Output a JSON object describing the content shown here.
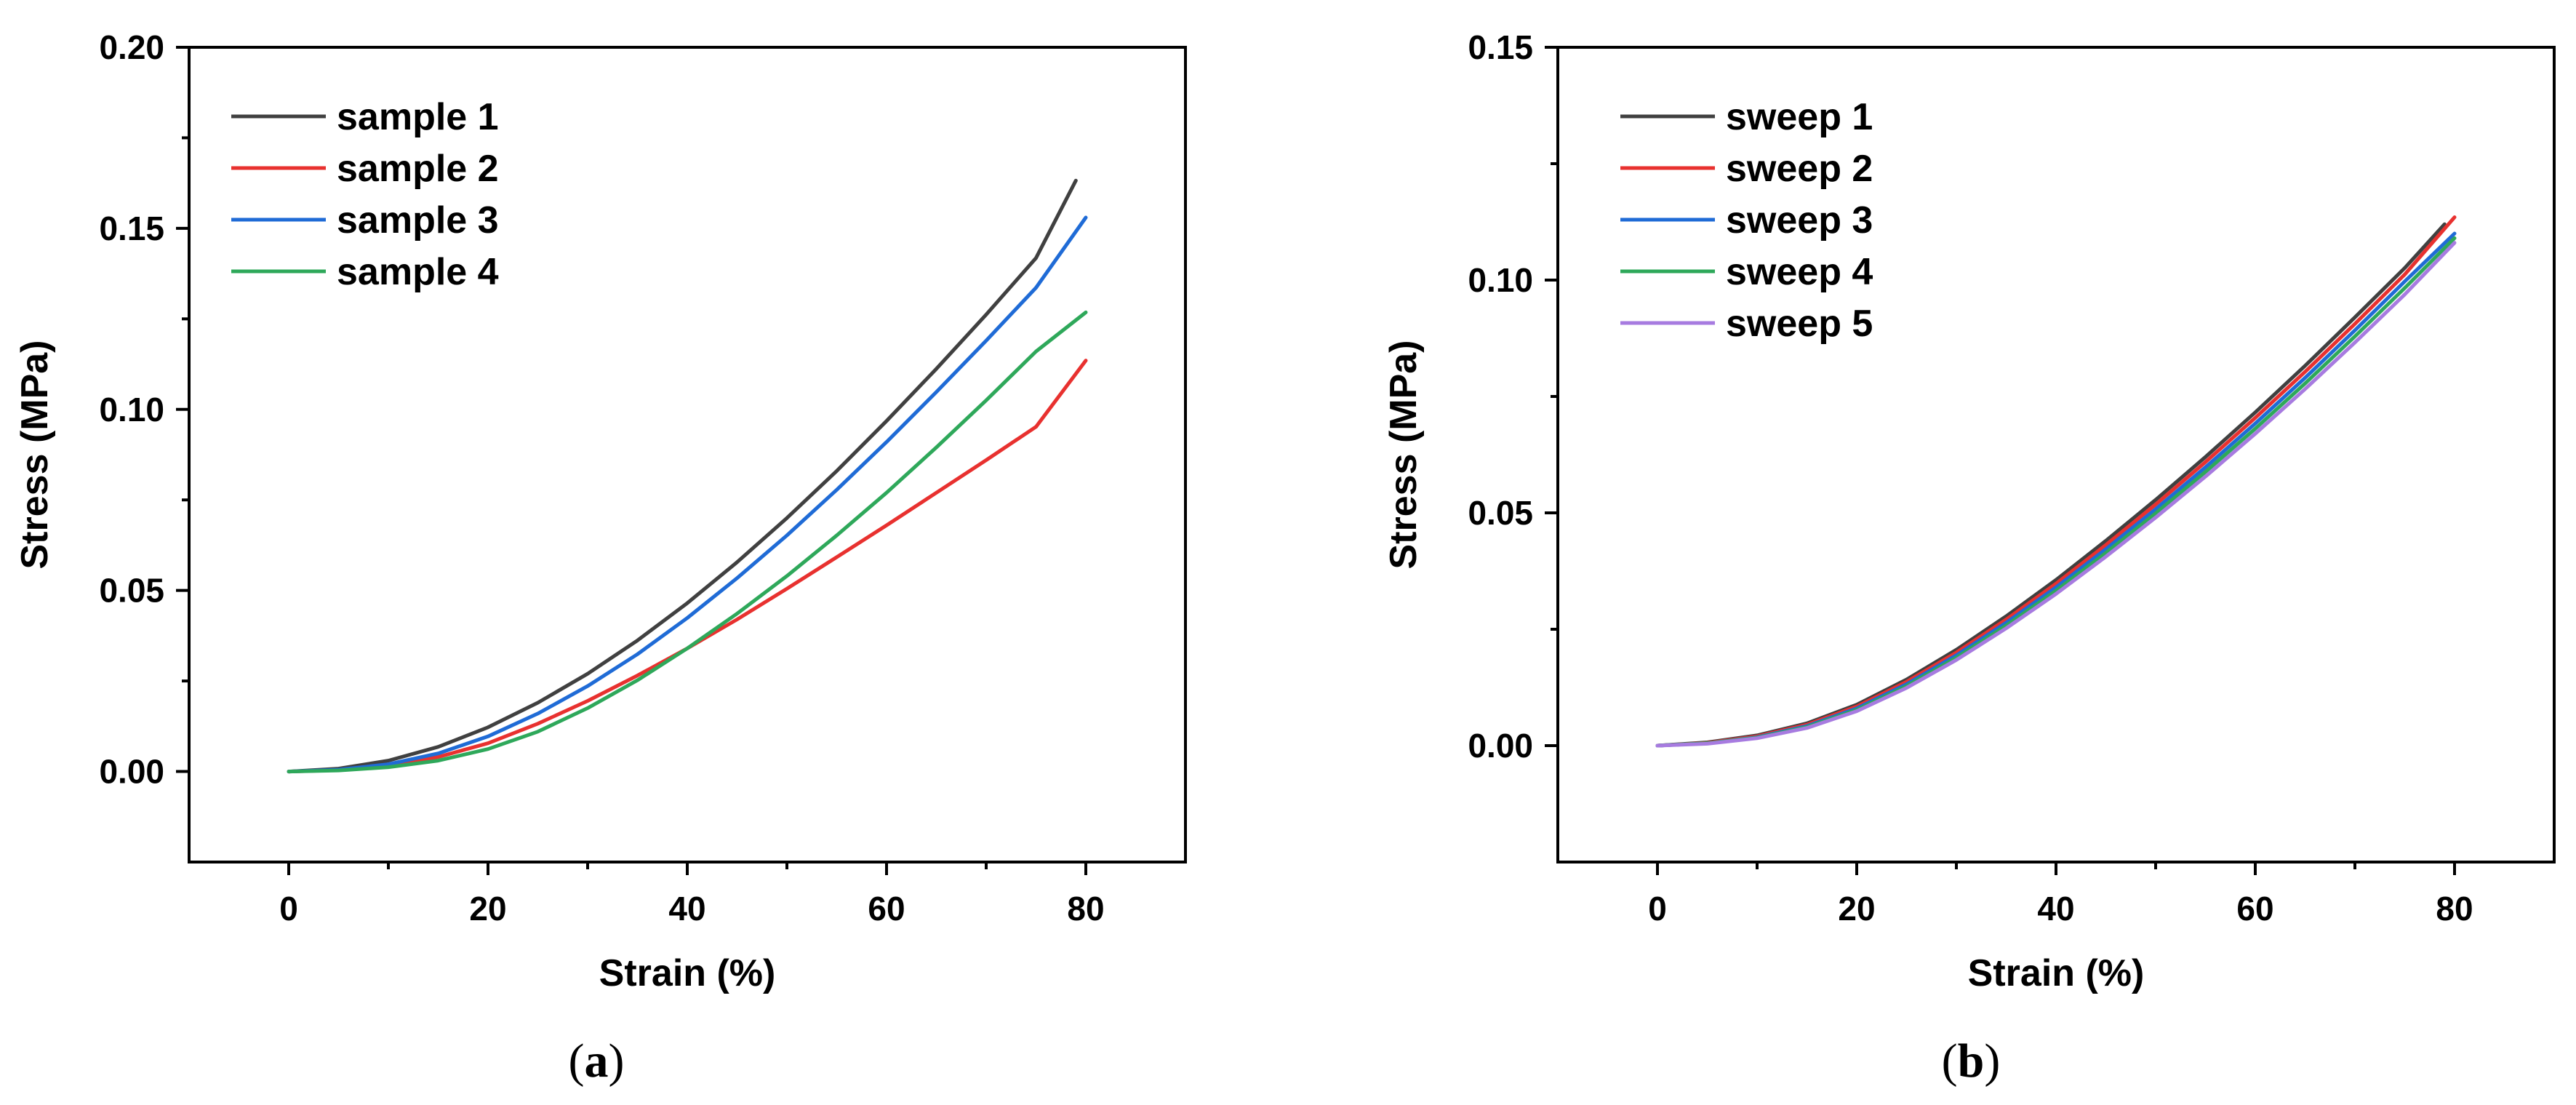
{
  "chart_data": [
    {
      "type": "line",
      "panel_label": "a",
      "xlabel": "Strain (%)",
      "ylabel": "Stress (MPa)",
      "xlim": [
        -10,
        90
      ],
      "ylim": [
        -0.025,
        0.2
      ],
      "xticks": [
        0,
        20,
        40,
        60,
        80
      ],
      "yticks": [
        0.0,
        0.05,
        0.1,
        0.15,
        0.2
      ],
      "ytick_labels": [
        "0.00",
        "0.05",
        "0.10",
        "0.15",
        "0.20"
      ],
      "grid": false,
      "legend_position": "top-left",
      "series": [
        {
          "name": "sample 1",
          "color": "#404040",
          "x": [
            0,
            5,
            10,
            15,
            20,
            25,
            30,
            35,
            40,
            45,
            50,
            55,
            60,
            65,
            70,
            75,
            79
          ],
          "y": [
            0,
            0.0008,
            0.003,
            0.0068,
            0.0122,
            0.019,
            0.027,
            0.0362,
            0.0465,
            0.0578,
            0.07,
            0.083,
            0.0968,
            0.1112,
            0.1262,
            0.1418,
            0.1632
          ]
        },
        {
          "name": "sample 2",
          "color": "#e8312f",
          "x": [
            0,
            5,
            10,
            15,
            20,
            25,
            30,
            35,
            40,
            45,
            50,
            55,
            60,
            65,
            70,
            75,
            80
          ],
          "y": [
            0,
            0.0004,
            0.0016,
            0.004,
            0.0078,
            0.0132,
            0.0195,
            0.0265,
            0.034,
            0.042,
            0.0505,
            0.0592,
            0.068,
            0.077,
            0.086,
            0.0952,
            0.1135
          ]
        },
        {
          "name": "sample 3",
          "color": "#1f6bd6",
          "x": [
            0,
            5,
            10,
            15,
            20,
            25,
            30,
            35,
            40,
            45,
            50,
            55,
            60,
            65,
            70,
            75,
            80
          ],
          "y": [
            0,
            0.0005,
            0.002,
            0.005,
            0.0097,
            0.016,
            0.0236,
            0.0324,
            0.0424,
            0.0534,
            0.0652,
            0.0778,
            0.091,
            0.1048,
            0.119,
            0.1336,
            0.153
          ]
        },
        {
          "name": "sample 4",
          "color": "#2ea85a",
          "x": [
            0,
            5,
            10,
            15,
            20,
            25,
            30,
            35,
            40,
            45,
            50,
            55,
            60,
            65,
            70,
            75,
            80
          ],
          "y": [
            0,
            0.0003,
            0.0012,
            0.003,
            0.0062,
            0.011,
            0.0175,
            0.0252,
            0.034,
            0.0436,
            0.054,
            0.0652,
            0.077,
            0.0895,
            0.1025,
            0.116,
            0.1268
          ]
        }
      ]
    },
    {
      "type": "line",
      "panel_label": "b",
      "xlabel": "Strain (%)",
      "ylabel": "Stress (MPa)",
      "xlim": [
        -10,
        90
      ],
      "ylim": [
        -0.025,
        0.15
      ],
      "xticks": [
        0,
        20,
        40,
        60,
        80
      ],
      "yticks": [
        0.0,
        0.05,
        0.1,
        0.15
      ],
      "ytick_labels": [
        "0.00",
        "0.05",
        "0.10",
        "0.15"
      ],
      "grid": false,
      "legend_position": "top-left",
      "series": [
        {
          "name": "sweep 1",
          "color": "#404040",
          "x": [
            0,
            5,
            10,
            15,
            20,
            25,
            30,
            35,
            40,
            45,
            50,
            55,
            60,
            65,
            70,
            75,
            79
          ],
          "y": [
            0,
            0.0007,
            0.0022,
            0.0048,
            0.0088,
            0.0142,
            0.0206,
            0.0278,
            0.0356,
            0.044,
            0.0528,
            0.062,
            0.0716,
            0.0816,
            0.092,
            0.1026,
            0.112
          ]
        },
        {
          "name": "sweep 2",
          "color": "#e8312f",
          "x": [
            0,
            5,
            10,
            15,
            20,
            25,
            30,
            35,
            40,
            45,
            50,
            55,
            60,
            65,
            70,
            75,
            80
          ],
          "y": [
            0,
            0.0006,
            0.002,
            0.0045,
            0.0084,
            0.0137,
            0.02,
            0.0271,
            0.0348,
            0.0431,
            0.0518,
            0.0609,
            0.0704,
            0.0803,
            0.0906,
            0.1012,
            0.1135
          ]
        },
        {
          "name": "sweep 3",
          "color": "#1f6bd6",
          "x": [
            0,
            5,
            10,
            15,
            20,
            25,
            30,
            35,
            40,
            45,
            50,
            55,
            60,
            65,
            70,
            75,
            80
          ],
          "y": [
            0,
            0.0005,
            0.0018,
            0.0042,
            0.008,
            0.0132,
            0.0194,
            0.0264,
            0.034,
            0.0422,
            0.0508,
            0.0598,
            0.0692,
            0.079,
            0.0892,
            0.0997,
            0.11
          ]
        },
        {
          "name": "sweep 4",
          "color": "#2ea85a",
          "x": [
            0,
            5,
            10,
            15,
            20,
            25,
            30,
            35,
            40,
            45,
            50,
            55,
            60,
            65,
            70,
            75,
            80
          ],
          "y": [
            0,
            0.0005,
            0.0017,
            0.004,
            0.0077,
            0.0128,
            0.0189,
            0.0258,
            0.0333,
            0.0414,
            0.0499,
            0.0588,
            0.0681,
            0.0778,
            0.0879,
            0.0983,
            0.109
          ]
        },
        {
          "name": "sweep 5",
          "color": "#a77be0",
          "x": [
            0,
            5,
            10,
            15,
            20,
            25,
            30,
            35,
            40,
            45,
            50,
            55,
            60,
            65,
            70,
            75,
            80
          ],
          "y": [
            0,
            0.0004,
            0.0016,
            0.0038,
            0.0074,
            0.0124,
            0.0184,
            0.0252,
            0.0326,
            0.0406,
            0.049,
            0.0578,
            0.067,
            0.0766,
            0.0866,
            0.0969,
            0.108
          ]
        }
      ]
    }
  ]
}
